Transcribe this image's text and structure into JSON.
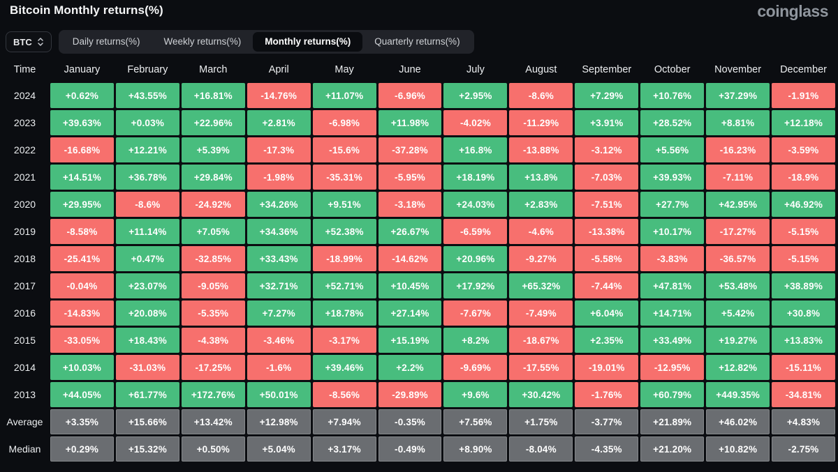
{
  "header": {
    "title": "Bitcoin Monthly returns(%)",
    "logo": "coinglass"
  },
  "controls": {
    "coin_selector": {
      "label": "BTC",
      "icon": "updown-chevron-icon"
    },
    "tabs": [
      {
        "label": "Daily returns(%)",
        "active": false
      },
      {
        "label": "Weekly returns(%)",
        "active": false
      },
      {
        "label": "Monthly returns(%)",
        "active": true
      },
      {
        "label": "Quarterly returns(%)",
        "active": false
      }
    ]
  },
  "table": {
    "time_header": "Time",
    "columns": [
      "January",
      "February",
      "March",
      "April",
      "May",
      "June",
      "July",
      "August",
      "September",
      "October",
      "November",
      "December"
    ],
    "rows": [
      {
        "label": "2024",
        "type": "year",
        "values": [
          "+0.62%",
          "+43.55%",
          "+16.81%",
          "-14.76%",
          "+11.07%",
          "-6.96%",
          "+2.95%",
          "-8.6%",
          "+7.29%",
          "+10.76%",
          "+37.29%",
          "-1.91%"
        ]
      },
      {
        "label": "2023",
        "type": "year",
        "values": [
          "+39.63%",
          "+0.03%",
          "+22.96%",
          "+2.81%",
          "-6.98%",
          "+11.98%",
          "-4.02%",
          "-11.29%",
          "+3.91%",
          "+28.52%",
          "+8.81%",
          "+12.18%"
        ]
      },
      {
        "label": "2022",
        "type": "year",
        "values": [
          "-16.68%",
          "+12.21%",
          "+5.39%",
          "-17.3%",
          "-15.6%",
          "-37.28%",
          "+16.8%",
          "-13.88%",
          "-3.12%",
          "+5.56%",
          "-16.23%",
          "-3.59%"
        ]
      },
      {
        "label": "2021",
        "type": "year",
        "values": [
          "+14.51%",
          "+36.78%",
          "+29.84%",
          "-1.98%",
          "-35.31%",
          "-5.95%",
          "+18.19%",
          "+13.8%",
          "-7.03%",
          "+39.93%",
          "-7.11%",
          "-18.9%"
        ]
      },
      {
        "label": "2020",
        "type": "year",
        "values": [
          "+29.95%",
          "-8.6%",
          "-24.92%",
          "+34.26%",
          "+9.51%",
          "-3.18%",
          "+24.03%",
          "+2.83%",
          "-7.51%",
          "+27.7%",
          "+42.95%",
          "+46.92%"
        ]
      },
      {
        "label": "2019",
        "type": "year",
        "values": [
          "-8.58%",
          "+11.14%",
          "+7.05%",
          "+34.36%",
          "+52.38%",
          "+26.67%",
          "-6.59%",
          "-4.6%",
          "-13.38%",
          "+10.17%",
          "-17.27%",
          "-5.15%"
        ]
      },
      {
        "label": "2018",
        "type": "year",
        "values": [
          "-25.41%",
          "+0.47%",
          "-32.85%",
          "+33.43%",
          "-18.99%",
          "-14.62%",
          "+20.96%",
          "-9.27%",
          "-5.58%",
          "-3.83%",
          "-36.57%",
          "-5.15%"
        ]
      },
      {
        "label": "2017",
        "type": "year",
        "values": [
          "-0.04%",
          "+23.07%",
          "-9.05%",
          "+32.71%",
          "+52.71%",
          "+10.45%",
          "+17.92%",
          "+65.32%",
          "-7.44%",
          "+47.81%",
          "+53.48%",
          "+38.89%"
        ]
      },
      {
        "label": "2016",
        "type": "year",
        "values": [
          "-14.83%",
          "+20.08%",
          "-5.35%",
          "+7.27%",
          "+18.78%",
          "+27.14%",
          "-7.67%",
          "-7.49%",
          "+6.04%",
          "+14.71%",
          "+5.42%",
          "+30.8%"
        ]
      },
      {
        "label": "2015",
        "type": "year",
        "values": [
          "-33.05%",
          "+18.43%",
          "-4.38%",
          "-3.46%",
          "-3.17%",
          "+15.19%",
          "+8.2%",
          "-18.67%",
          "+2.35%",
          "+33.49%",
          "+19.27%",
          "+13.83%"
        ]
      },
      {
        "label": "2014",
        "type": "year",
        "values": [
          "+10.03%",
          "-31.03%",
          "-17.25%",
          "-1.6%",
          "+39.46%",
          "+2.2%",
          "-9.69%",
          "-17.55%",
          "-19.01%",
          "-12.95%",
          "+12.82%",
          "-15.11%"
        ]
      },
      {
        "label": "2013",
        "type": "year",
        "values": [
          "+44.05%",
          "+61.77%",
          "+172.76%",
          "+50.01%",
          "-8.56%",
          "-29.89%",
          "+9.6%",
          "+30.42%",
          "-1.76%",
          "+60.79%",
          "+449.35%",
          "-34.81%"
        ]
      },
      {
        "label": "Average",
        "type": "summary",
        "values": [
          "+3.35%",
          "+15.66%",
          "+13.42%",
          "+12.98%",
          "+7.94%",
          "-0.35%",
          "+7.56%",
          "+1.75%",
          "-3.77%",
          "+21.89%",
          "+46.02%",
          "+4.83%"
        ]
      },
      {
        "label": "Median",
        "type": "summary",
        "values": [
          "+0.29%",
          "+15.32%",
          "+0.50%",
          "+5.04%",
          "+3.17%",
          "-0.49%",
          "+8.90%",
          "-8.04%",
          "-4.35%",
          "+21.20%",
          "+10.82%",
          "-2.75%"
        ]
      }
    ]
  },
  "colors": {
    "positive": "#48bd7e",
    "negative": "#f7706d",
    "summary": "#6a6d71",
    "background": "#0b0d11"
  }
}
